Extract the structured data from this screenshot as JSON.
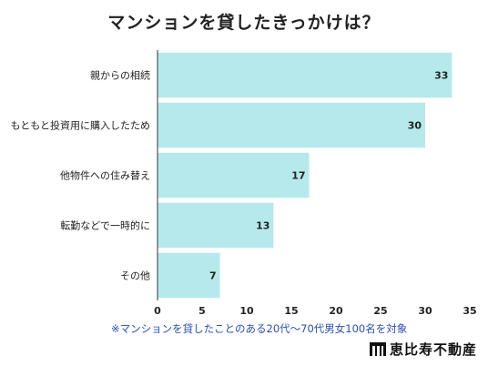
{
  "title": "マンションを貸したきっかけは？",
  "note": "※マンションを貸したことのある20代〜70代男女100名を対象",
  "logo": {
    "text": "恵比寿不動産",
    "icon": "building-icon"
  },
  "colors": {
    "bar": "#b6e9ec",
    "axis": "#333333",
    "grid": "#f0f0f0",
    "note": "#2a4fb5"
  },
  "chart_data": {
    "type": "bar",
    "orientation": "horizontal",
    "title": "マンションを貸したきっかけは？",
    "categories": [
      "親からの相続",
      "もともと投資用に購入したため",
      "他物件への住み替え",
      "転勤などで一時的に",
      "その他"
    ],
    "values": [
      33,
      30,
      17,
      13,
      7
    ],
    "xlim": [
      0,
      35
    ],
    "xticks": [
      0,
      5,
      10,
      15,
      20,
      25,
      30,
      35
    ],
    "data_labels": true,
    "grid": false
  }
}
